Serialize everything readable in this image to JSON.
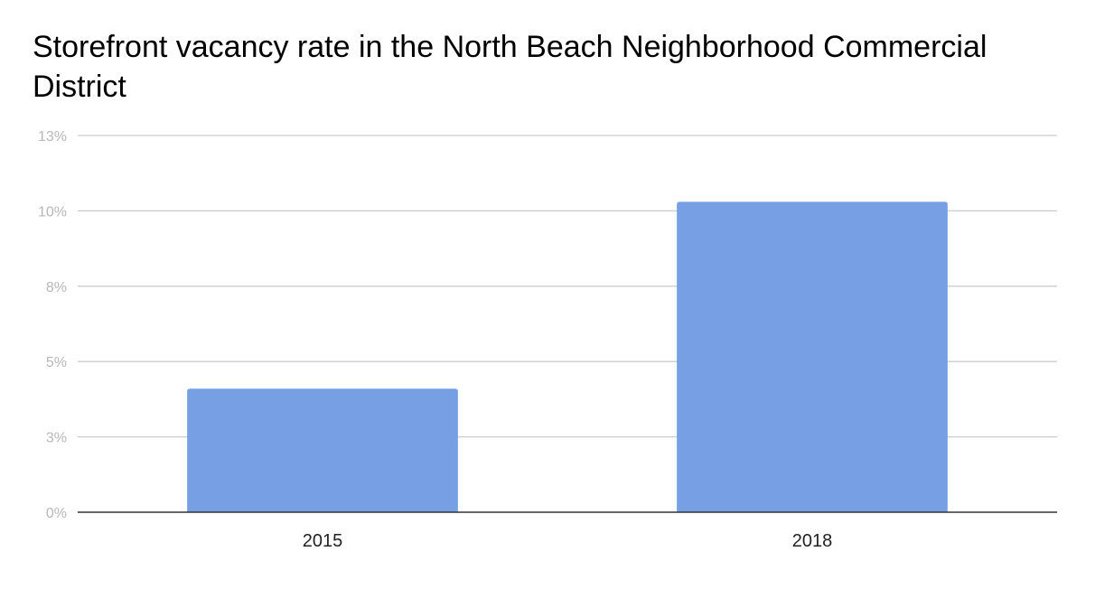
{
  "chart_data": {
    "type": "bar",
    "title": "Storefront vacancy rate in the North Beach Neighborhood Commercial District",
    "xlabel": "",
    "ylabel": "",
    "categories": [
      "2015",
      "2018"
    ],
    "series": [
      {
        "values": [
          4.1,
          10.3
        ]
      }
    ],
    "ylim": [
      0,
      12.5
    ],
    "yticks": [
      {
        "value": 0,
        "label": "0%"
      },
      {
        "value": 2.5,
        "label": "3%"
      },
      {
        "value": 5,
        "label": "5%"
      },
      {
        "value": 7.5,
        "label": "8%"
      },
      {
        "value": 10,
        "label": "10%"
      },
      {
        "value": 12.5,
        "label": "13%"
      }
    ],
    "grid": true,
    "legend": "none",
    "colors": {
      "bar": "#779fe3",
      "grid": "#cccccc",
      "axis": "#333333"
    }
  }
}
